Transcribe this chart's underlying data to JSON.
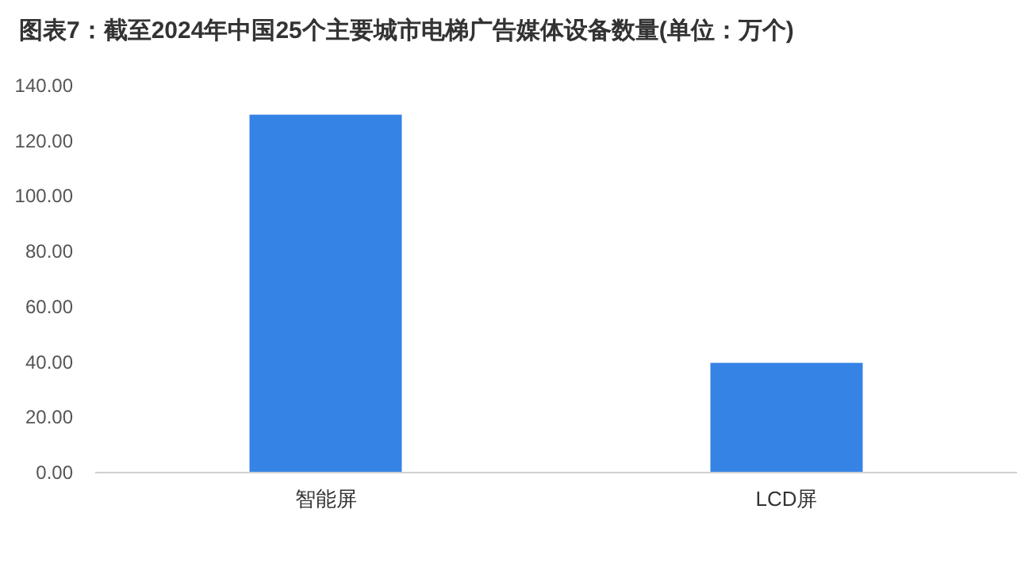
{
  "chart_data": {
    "type": "bar",
    "title": "图表7：截至2024年中国25个主要城市电梯广告媒体设备数量(单位：万个)",
    "categories": [
      "智能屏",
      "LCD屏"
    ],
    "values": [
      129.5,
      39.7
    ],
    "color": "#3683e6",
    "ylim": [
      0,
      140
    ],
    "yticks": [
      {
        "value": 0,
        "label": "0.00"
      },
      {
        "value": 20,
        "label": "20.00"
      },
      {
        "value": 40,
        "label": "40.00"
      },
      {
        "value": 60,
        "label": "60.00"
      },
      {
        "value": 80,
        "label": "80.00"
      },
      {
        "value": 100,
        "label": "100.00"
      },
      {
        "value": 120,
        "label": "120.00"
      },
      {
        "value": 140,
        "label": "140.00"
      }
    ],
    "grid": false
  }
}
